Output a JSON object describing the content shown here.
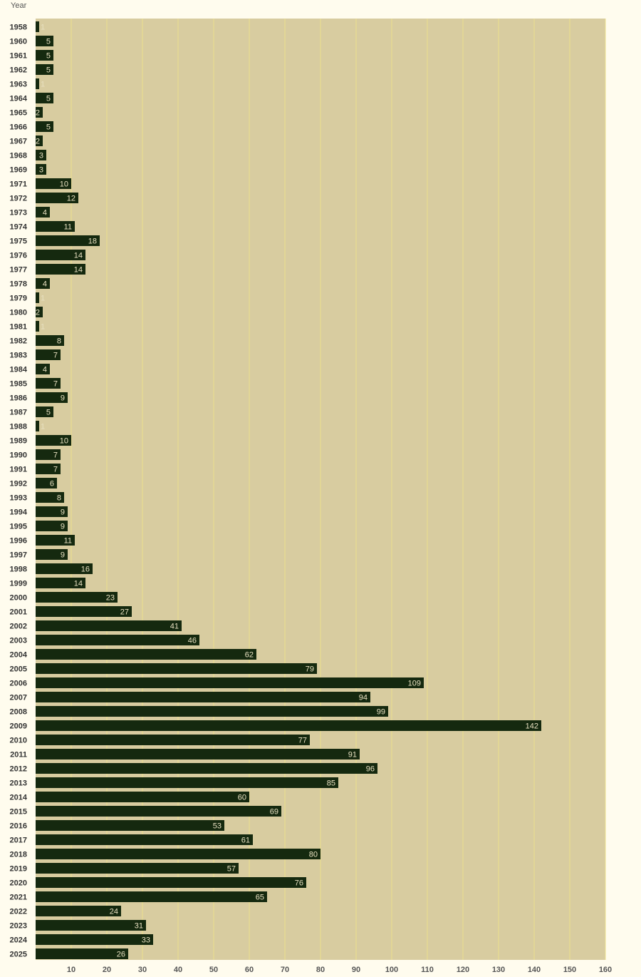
{
  "chart_data": {
    "type": "bar",
    "orientation": "horizontal",
    "ylabel": "Year",
    "xlabel": "",
    "xlim": [
      0,
      160
    ],
    "x_ticks": [
      10,
      20,
      30,
      40,
      50,
      60,
      70,
      80,
      90,
      100,
      110,
      120,
      130,
      140,
      150,
      160
    ],
    "grid": true,
    "categories": [
      "1958",
      "1960",
      "1961",
      "1962",
      "1963",
      "1964",
      "1965",
      "1966",
      "1967",
      "1968",
      "1969",
      "1971",
      "1972",
      "1973",
      "1974",
      "1975",
      "1976",
      "1977",
      "1978",
      "1979",
      "1980",
      "1981",
      "1982",
      "1983",
      "1984",
      "1985",
      "1986",
      "1987",
      "1988",
      "1989",
      "1990",
      "1991",
      "1992",
      "1993",
      "1994",
      "1995",
      "1996",
      "1997",
      "1998",
      "1999",
      "2000",
      "2001",
      "2002",
      "2003",
      "2004",
      "2005",
      "2006",
      "2007",
      "2008",
      "2009",
      "2010",
      "2011",
      "2012",
      "2013",
      "2014",
      "2015",
      "2016",
      "2017",
      "2018",
      "2019",
      "2020",
      "2021",
      "2022",
      "2023",
      "2024",
      "2025"
    ],
    "values": [
      1,
      5,
      5,
      5,
      1,
      5,
      2,
      5,
      2,
      3,
      3,
      10,
      12,
      4,
      11,
      18,
      14,
      14,
      4,
      1,
      2,
      1,
      8,
      7,
      4,
      7,
      9,
      5,
      1,
      10,
      7,
      7,
      6,
      8,
      9,
      9,
      11,
      9,
      16,
      14,
      23,
      27,
      41,
      46,
      62,
      79,
      109,
      94,
      99,
      142,
      77,
      91,
      96,
      85,
      60,
      69,
      53,
      61,
      80,
      57,
      76,
      65,
      24,
      31,
      33,
      26
    ],
    "colors": {
      "plot_background": "#d8cca0",
      "page_background": "#fffcee",
      "bar": "#15290f",
      "gridline": "#ece08c",
      "bar_label": "#e8e0c0"
    }
  }
}
